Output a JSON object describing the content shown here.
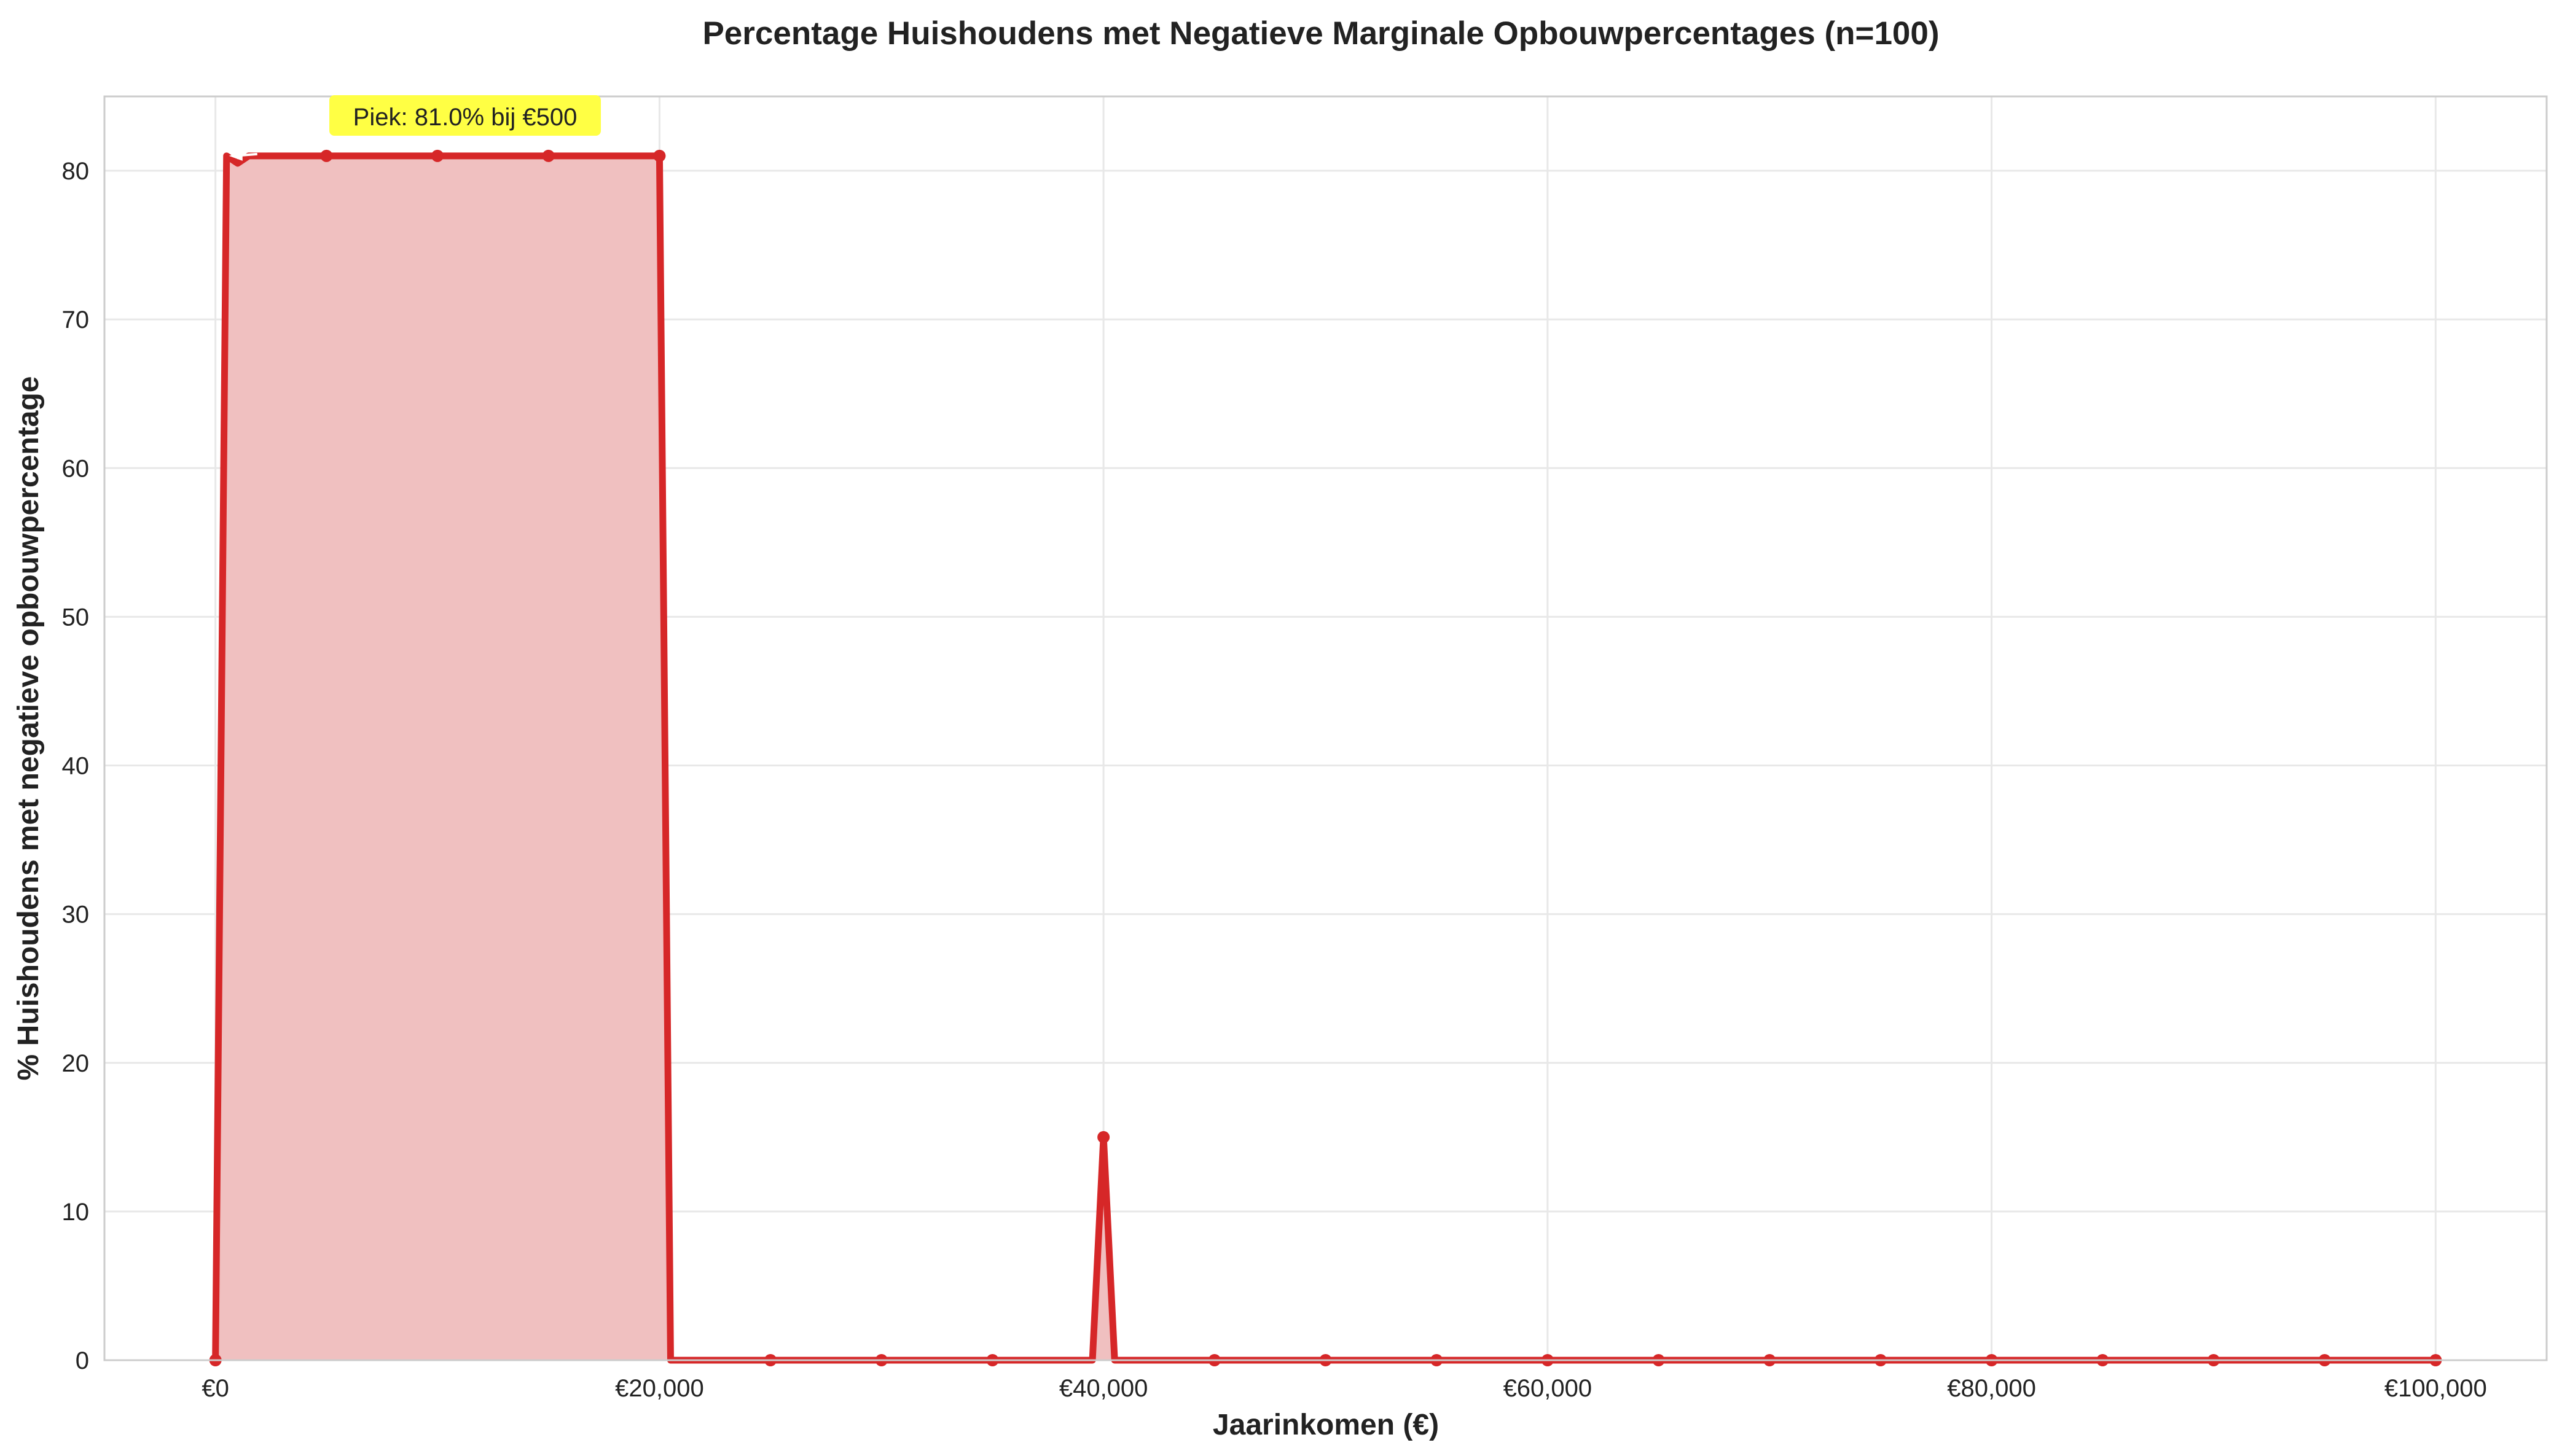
{
  "chart_data": {
    "type": "area",
    "title": "Percentage Huishoudens met Negatieve Marginale Opbouwpercentages (n=100)",
    "xlabel": "Jaarinkomen (€)",
    "ylabel": "% Huishoudens met negatieve opbouwpercentage",
    "xlim": [
      -5000,
      105000
    ],
    "ylim": [
      0,
      85
    ],
    "x_ticks": [
      0,
      20000,
      40000,
      60000,
      80000,
      100000
    ],
    "x_tick_labels": [
      "€0",
      "€20,000",
      "€40,000",
      "€60,000",
      "€80,000",
      "€100,000"
    ],
    "y_ticks": [
      0,
      10,
      20,
      30,
      40,
      50,
      60,
      70,
      80
    ],
    "y_tick_labels": [
      "0",
      "10",
      "20",
      "30",
      "40",
      "50",
      "60",
      "70",
      "80"
    ],
    "grid": true,
    "series": [
      {
        "color": "#d62728",
        "fill_color": "#f0c0c0",
        "x": [
          0,
          500,
          1000,
          1500,
          2000,
          5000,
          10000,
          15000,
          20000,
          20500,
          25000,
          30000,
          35000,
          39500,
          40000,
          40500,
          45000,
          50000,
          55000,
          60000,
          65000,
          70000,
          75000,
          80000,
          85000,
          90000,
          95000,
          100000
        ],
        "y": [
          0,
          81,
          80.5,
          81,
          81,
          81,
          81,
          81,
          81,
          0,
          0,
          0,
          0,
          0,
          15,
          0,
          0,
          0,
          0,
          0,
          0,
          0,
          0,
          0,
          0,
          0,
          0,
          0
        ]
      }
    ],
    "markers_x": [
      0,
      5000,
      10000,
      15000,
      20000,
      25000,
      30000,
      35000,
      40000,
      45000,
      50000,
      55000,
      60000,
      65000,
      70000,
      75000,
      80000,
      85000,
      90000,
      95000,
      100000
    ],
    "annotation": {
      "text": "Piek: 81.0% bij €500",
      "x": 500,
      "y": 81,
      "box_color": "#ffff44"
    }
  }
}
